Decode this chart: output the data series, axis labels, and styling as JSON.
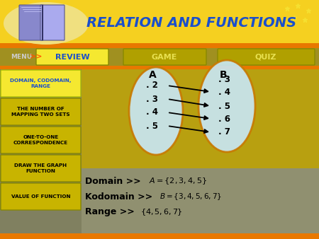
{
  "title": "RELATION AND FUNCTIONS",
  "title_color": "#1a4fcc",
  "header_bg_top": "#f5d020",
  "header_bg_oval": "#f0e080",
  "header_orange": "#e87800",
  "nav_bg": "#a09020",
  "menu_text_color": "#cccccc",
  "nav_buttons": [
    "REVIEW",
    "GAME",
    "QUIZ"
  ],
  "review_bg": "#f5e830",
  "review_text": "#1a4fcc",
  "game_quiz_bg": "#b0a000",
  "game_quiz_text": "#e8e050",
  "sidebar_bg": "#808060",
  "sidebar_items": [
    "DOMAIN, CODOMAIN,\nRANGE",
    "THE NUMBER OF\nMAPPING TWO SETS",
    "ONE-TO-ONE\nCORRESPONDENCE",
    "DRAW THE GRAPH\nFUNCTION",
    "VALUE OF FUNCTION"
  ],
  "sidebar_active_bg": "#f5e830",
  "sidebar_active_text": "#1a4fcc",
  "sidebar_inactive_bg": "#c8b400",
  "sidebar_inactive_text": "#000000",
  "content_bg": "#a09000",
  "content_bg2": "#888060",
  "set_A_label": "A",
  "set_B_label": "B",
  "set_A_elements": [
    "2",
    "3",
    "4",
    "5"
  ],
  "set_B_elements": [
    "3",
    "4",
    "5",
    "6",
    "7"
  ],
  "arrows": [
    [
      0,
      1
    ],
    [
      1,
      2
    ],
    [
      2,
      3
    ],
    [
      3,
      4
    ]
  ],
  "ellipse_fill": "#c8e8f8",
  "ellipse_edge": "#c87800",
  "bottom_bg": "#909070",
  "domain_label": "Domain >>",
  "kodomain_label": "Kodomain >>",
  "range_label": "Range >>",
  "domain_formula": "A = {2, 3, 4, 5}",
  "kodomain_formula": "B = {3, 4, 5, 6, 7}",
  "range_formula": "{4, 5, 6, 7}"
}
